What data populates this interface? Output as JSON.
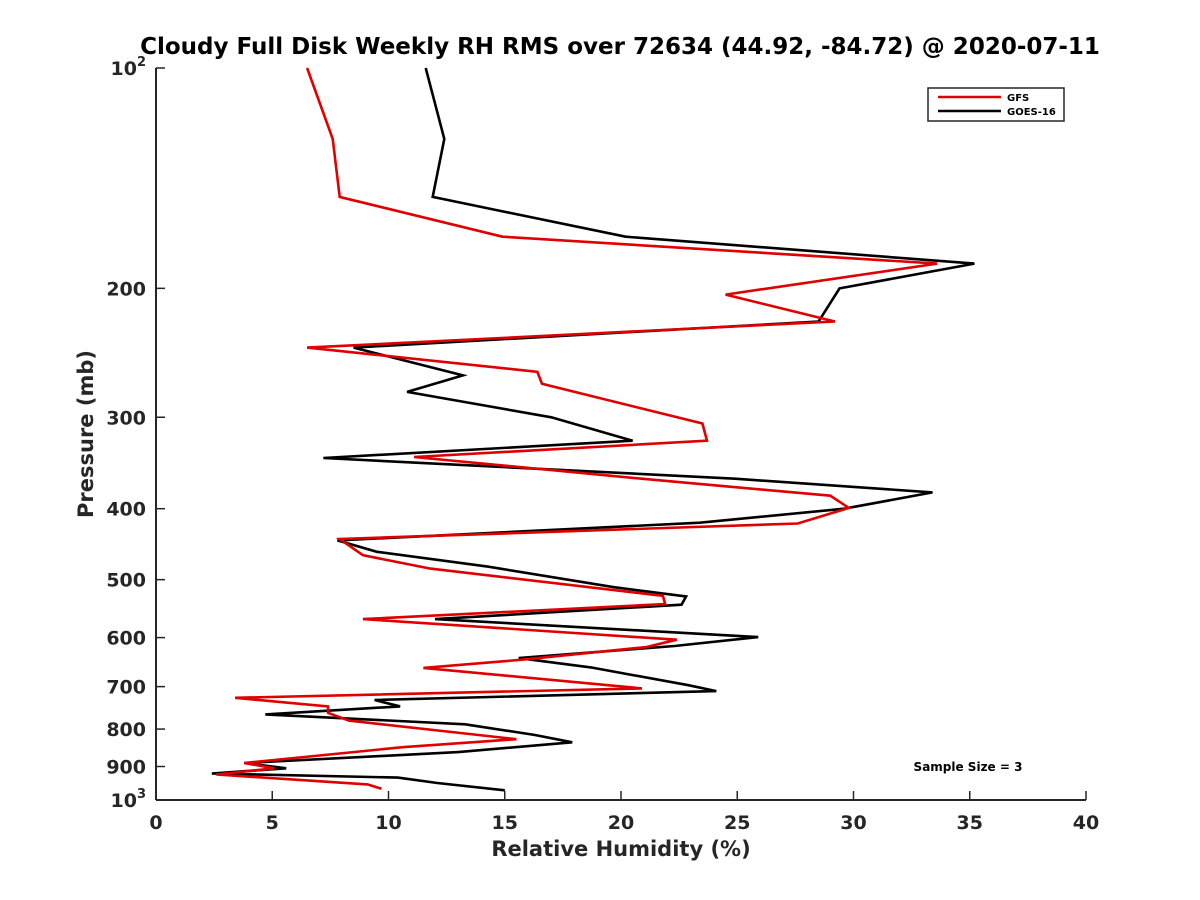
{
  "chart_data": {
    "type": "line",
    "title": "Cloudy Full Disk Weekly RH RMS over 72634 (44.92, -84.72) @ 2020-07-11",
    "xlabel": "Relative Humidity (%)",
    "ylabel": "Pressure (mb)",
    "xlim": [
      0,
      40
    ],
    "ylim": [
      100,
      1000
    ],
    "yscale": "log",
    "y_reversed": true,
    "xticks": [
      0,
      5,
      10,
      15,
      20,
      25,
      30,
      35,
      40
    ],
    "yticks": [
      {
        "value": 100,
        "base": "10",
        "exp": "2"
      },
      {
        "value": 200,
        "label": "200"
      },
      {
        "value": 300,
        "label": "300"
      },
      {
        "value": 400,
        "label": "400"
      },
      {
        "value": 500,
        "label": "500"
      },
      {
        "value": 600,
        "label": "600"
      },
      {
        "value": 700,
        "label": "700"
      },
      {
        "value": 800,
        "label": "800"
      },
      {
        "value": 900,
        "label": "900"
      },
      {
        "value": 1000,
        "base": "10",
        "exp": "3"
      }
    ],
    "grid": false,
    "legend_position": "top-right",
    "annotation": "Sample Size = 3",
    "series": [
      {
        "name": "GFS",
        "color": "#e00000",
        "points": [
          [
            6.5,
            100
          ],
          [
            7.6,
            125
          ],
          [
            7.9,
            150
          ],
          [
            14.9,
            170
          ],
          [
            33.6,
            185
          ],
          [
            24.5,
            204
          ],
          [
            29.2,
            222
          ],
          [
            6.5,
            241
          ],
          [
            16.4,
            260
          ],
          [
            16.6,
            270
          ],
          [
            23.5,
            306
          ],
          [
            23.7,
            323
          ],
          [
            11.1,
            340
          ],
          [
            21.3,
            365
          ],
          [
            29.0,
            384
          ],
          [
            29.8,
            399
          ],
          [
            27.6,
            419
          ],
          [
            7.9,
            440
          ],
          [
            8.9,
            463
          ],
          [
            11.8,
            483
          ],
          [
            21.8,
            526
          ],
          [
            21.9,
            540
          ],
          [
            8.9,
            566
          ],
          [
            22.4,
            604
          ],
          [
            21.1,
            618
          ],
          [
            15.8,
            643
          ],
          [
            11.5,
            660
          ],
          [
            20.9,
            704
          ],
          [
            3.4,
            725
          ],
          [
            7.4,
            745
          ],
          [
            7.4,
            760
          ],
          [
            8.3,
            779
          ],
          [
            15.5,
            826
          ],
          [
            10.6,
            847
          ],
          [
            3.8,
            890
          ],
          [
            5.1,
            905
          ],
          [
            2.6,
            923
          ],
          [
            9.1,
            952
          ],
          [
            9.7,
            965
          ]
        ]
      },
      {
        "name": "GOES-16",
        "color": "#000000",
        "points": [
          [
            11.6,
            100
          ],
          [
            12.4,
            125
          ],
          [
            11.9,
            150
          ],
          [
            20.2,
            170
          ],
          [
            35.2,
            185
          ],
          [
            29.4,
            200
          ],
          [
            28.5,
            222
          ],
          [
            8.5,
            241
          ],
          [
            13.2,
            263
          ],
          [
            10.8,
            277
          ],
          [
            17.0,
            300
          ],
          [
            20.5,
            323
          ],
          [
            7.2,
            341
          ],
          [
            24.9,
            364
          ],
          [
            33.4,
            380
          ],
          [
            29.6,
            400
          ],
          [
            23.4,
            418
          ],
          [
            7.8,
            442
          ],
          [
            9.5,
            458
          ],
          [
            14.3,
            480
          ],
          [
            19.7,
            512
          ],
          [
            22.8,
            527
          ],
          [
            22.6,
            541
          ],
          [
            12.0,
            566
          ],
          [
            25.9,
            599
          ],
          [
            22.3,
            616
          ],
          [
            15.6,
            640
          ],
          [
            18.7,
            659
          ],
          [
            22.9,
            697
          ],
          [
            24.1,
            710
          ],
          [
            9.4,
            730
          ],
          [
            10.5,
            745
          ],
          [
            4.7,
            764
          ],
          [
            13.3,
            788
          ],
          [
            16.3,
            815
          ],
          [
            17.9,
            834
          ],
          [
            13.0,
            860
          ],
          [
            3.8,
            890
          ],
          [
            5.6,
            905
          ],
          [
            2.4,
            920
          ],
          [
            10.4,
            932
          ],
          [
            12.1,
            948
          ],
          [
            15.0,
            970
          ]
        ]
      }
    ]
  }
}
